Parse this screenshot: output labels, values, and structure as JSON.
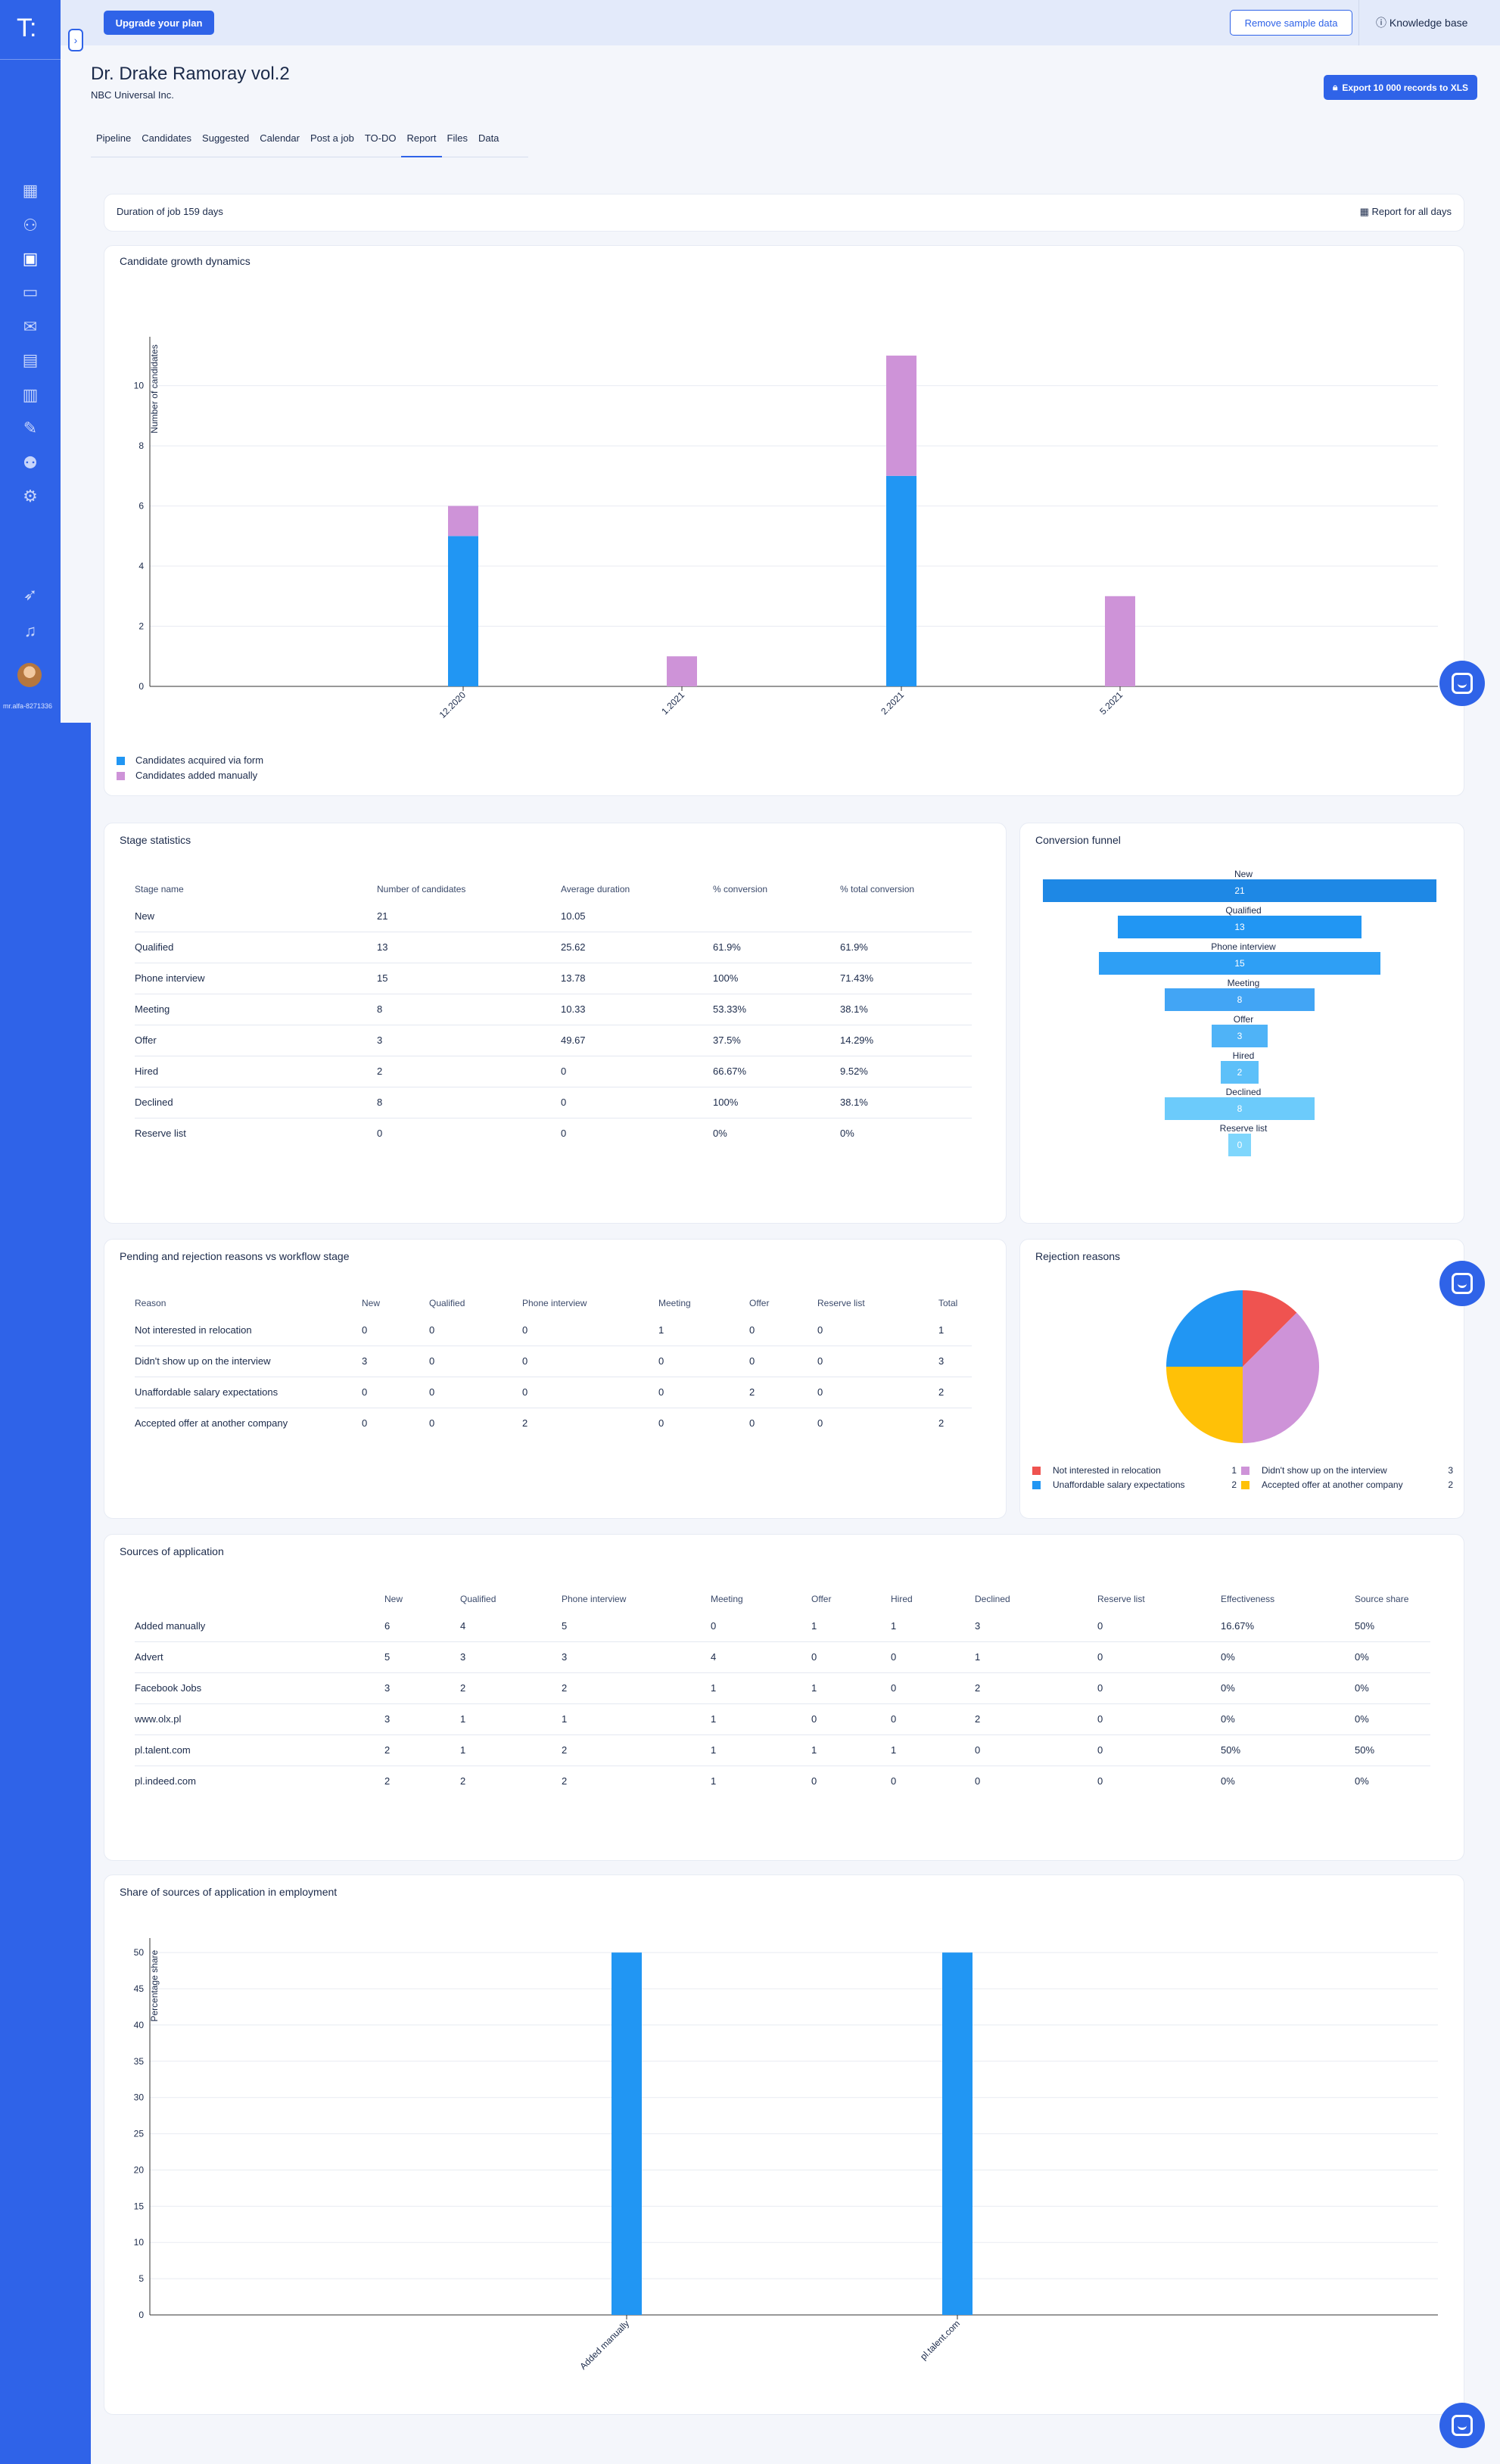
{
  "app": {
    "logo": "T:",
    "user_id": "mr.alfa-8271336"
  },
  "topbar": {
    "upgrade": "Upgrade your plan",
    "remove_sample": "Remove sample data",
    "knowledge_base": "Knowledge base"
  },
  "job": {
    "title": "Dr. Drake Ramoray vol.2",
    "company": "NBC Universal Inc.",
    "export": "Export 10 000 records to XLS"
  },
  "tabs": [
    "Pipeline",
    "Candidates",
    "Suggested",
    "Calendar",
    "Post a job",
    "TO-DO",
    "Report",
    "Files",
    "Data"
  ],
  "duration": {
    "text": "Duration of job 159 days",
    "report_all": "Report for all days"
  },
  "growth": {
    "title": "Candidate growth dynamics",
    "legend": [
      {
        "label": "Candidates acquired via form",
        "color": "#2196f3"
      },
      {
        "label": "Candidates added manually",
        "color": "#ce93d8"
      }
    ]
  },
  "stage": {
    "title": "Stage statistics",
    "headers": [
      "Stage name",
      "Number of candidates",
      "Average duration",
      "% conversion",
      "% total conversion"
    ],
    "rows": [
      [
        "New",
        "21",
        "10.05",
        "",
        ""
      ],
      [
        "Qualified",
        "13",
        "25.62",
        "61.9%",
        "61.9%"
      ],
      [
        "Phone interview",
        "15",
        "13.78",
        "100%",
        "71.43%"
      ],
      [
        "Meeting",
        "8",
        "10.33",
        "53.33%",
        "38.1%"
      ],
      [
        "Offer",
        "3",
        "49.67",
        "37.5%",
        "14.29%"
      ],
      [
        "Hired",
        "2",
        "0",
        "66.67%",
        "9.52%"
      ],
      [
        "Declined",
        "8",
        "0",
        "100%",
        "38.1%"
      ],
      [
        "Reserve list",
        "0",
        "0",
        "0%",
        "0%"
      ]
    ]
  },
  "funnel": {
    "title": "Conversion funnel",
    "stages": [
      {
        "label": "New",
        "value": 21,
        "color": "#1e88e5"
      },
      {
        "label": "Qualified",
        "value": 13,
        "color": "#2196f3"
      },
      {
        "label": "Phone interview",
        "value": 15,
        "color": "#2e9ff5"
      },
      {
        "label": "Meeting",
        "value": 8,
        "color": "#42a5f5"
      },
      {
        "label": "Offer",
        "value": 3,
        "color": "#4fb3f7"
      },
      {
        "label": "Hired",
        "value": 2,
        "color": "#5dc0f9"
      },
      {
        "label": "Declined",
        "value": 8,
        "color": "#6ccbfb"
      },
      {
        "label": "Reserve list",
        "value": 0,
        "color": "#7fd6fc"
      }
    ]
  },
  "pending": {
    "title": "Pending and rejection reasons vs workflow stage",
    "headers": [
      "Reason",
      "New",
      "Qualified",
      "Phone interview",
      "Meeting",
      "Offer",
      "Reserve list",
      "Total"
    ],
    "rows": [
      [
        "Not interested in relocation",
        "0",
        "0",
        "0",
        "1",
        "0",
        "0",
        "1"
      ],
      [
        "Didn't show up on the interview",
        "3",
        "0",
        "0",
        "0",
        "0",
        "0",
        "3"
      ],
      [
        "Unaffordable salary expectations",
        "0",
        "0",
        "0",
        "0",
        "2",
        "0",
        "2"
      ],
      [
        "Accepted offer at another company",
        "0",
        "0",
        "2",
        "0",
        "0",
        "0",
        "2"
      ]
    ]
  },
  "rejection": {
    "title": "Rejection reasons",
    "legend": [
      {
        "label": "Not interested in relocation",
        "value": "1",
        "color": "#ef5350"
      },
      {
        "label": "Didn't show up on the interview",
        "value": "3",
        "color": "#ce93d8"
      },
      {
        "label": "Unaffordable salary expectations",
        "value": "2",
        "color": "#2196f3"
      },
      {
        "label": "Accepted offer at another company",
        "value": "2",
        "color": "#ffc107"
      }
    ]
  },
  "sources": {
    "title": "Sources of application",
    "headers": [
      "",
      "New",
      "Qualified",
      "Phone interview",
      "Meeting",
      "Offer",
      "Hired",
      "Declined",
      "Reserve list",
      "Effectiveness",
      "Source share"
    ],
    "rows": [
      [
        "Added manually",
        "6",
        "4",
        "5",
        "0",
        "1",
        "1",
        "3",
        "0",
        "16.67%",
        "50%"
      ],
      [
        "Advert",
        "5",
        "3",
        "3",
        "4",
        "0",
        "0",
        "1",
        "0",
        "0%",
        "0%"
      ],
      [
        "Facebook Jobs",
        "3",
        "2",
        "2",
        "1",
        "1",
        "0",
        "2",
        "0",
        "0%",
        "0%"
      ],
      [
        "www.olx.pl",
        "3",
        "1",
        "1",
        "1",
        "0",
        "0",
        "2",
        "0",
        "0%",
        "0%"
      ],
      [
        "pl.talent.com",
        "2",
        "1",
        "2",
        "1",
        "1",
        "1",
        "0",
        "0",
        "50%",
        "50%"
      ],
      [
        "pl.indeed.com",
        "2",
        "2",
        "2",
        "1",
        "0",
        "0",
        "0",
        "0",
        "0%",
        "0%"
      ]
    ]
  },
  "share": {
    "title": "Share of sources of application in employment"
  },
  "chart_data": [
    {
      "type": "bar",
      "title": "Candidate growth dynamics",
      "ylabel": "Number of candidates",
      "xlabel": "",
      "categories": [
        "12.2020",
        "1.2021",
        "2.2021",
        "5.2021"
      ],
      "series": [
        {
          "name": "Candidates acquired via form",
          "values": [
            5,
            0,
            7,
            0
          ],
          "color": "#2196f3"
        },
        {
          "name": "Candidates added manually",
          "values": [
            1,
            1,
            4,
            3
          ],
          "color": "#ce93d8"
        }
      ],
      "stacked": true,
      "yticks": [
        0,
        2,
        4,
        6,
        8,
        10
      ],
      "ylim": [
        0,
        11.5
      ],
      "grid": true,
      "legend": "bottom-left"
    },
    {
      "type": "pie",
      "title": "Rejection reasons",
      "labels": [
        "Not interested in relocation",
        "Didn't show up on the interview",
        "Accepted offer at another company",
        "Unaffordable salary expectations"
      ],
      "values": [
        1,
        3,
        2,
        2
      ],
      "colors": [
        "#ef5350",
        "#ce93d8",
        "#ffc107",
        "#2196f3"
      ],
      "legend": "bottom"
    },
    {
      "type": "bar",
      "title": "Share of sources of application in employment",
      "ylabel": "Percentage share",
      "xlabel": "",
      "categories": [
        "Added manually",
        "pl.talent.com"
      ],
      "values": [
        50,
        50
      ],
      "color": "#2196f3",
      "yticks": [
        0,
        5,
        10,
        15,
        20,
        25,
        30,
        35,
        40,
        45,
        50
      ],
      "ylim": [
        0,
        52
      ],
      "grid": true
    }
  ]
}
